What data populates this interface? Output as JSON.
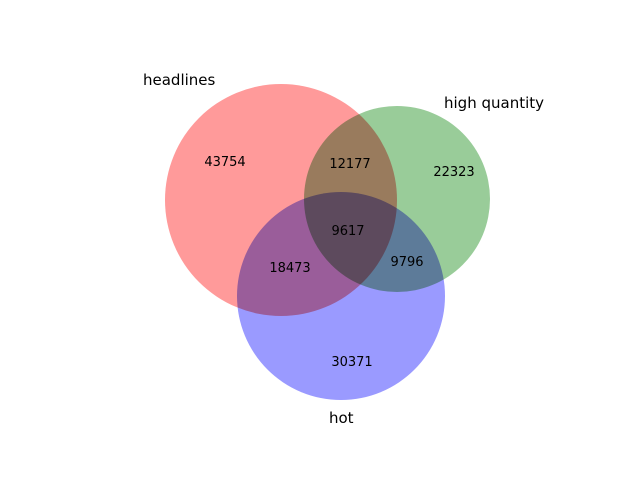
{
  "chart_data": {
    "type": "venn3",
    "sets": [
      {
        "name": "headlines",
        "color": "#ff9a9a"
      },
      {
        "name": "high quantity",
        "color": "#99cc99"
      },
      {
        "name": "hot",
        "color": "#9a9aff"
      }
    ],
    "regions": [
      {
        "id": "headlines_only",
        "value": "43754"
      },
      {
        "id": "high_quantity_only",
        "value": "22323"
      },
      {
        "id": "hot_only",
        "value": "30371"
      },
      {
        "id": "headlines_high_quantity",
        "value": "12177"
      },
      {
        "id": "headlines_hot",
        "value": "18473"
      },
      {
        "id": "high_quantity_hot",
        "value": "9796"
      },
      {
        "id": "all_three",
        "value": "9617"
      }
    ]
  }
}
